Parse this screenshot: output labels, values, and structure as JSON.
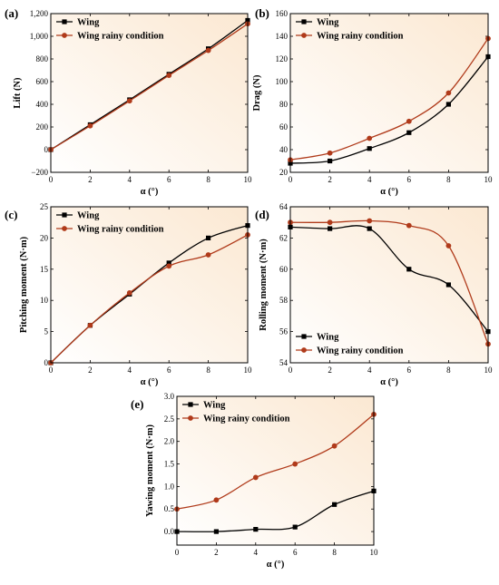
{
  "colors": {
    "wing": "#000000",
    "wing_rainy": "#b03a1a",
    "bg_gradient_start": "#ffffff",
    "bg_gradient_end": "#fbe8d2"
  },
  "chart_data": [
    {
      "id": "a",
      "panel_label": "(a)",
      "type": "line",
      "xlabel": "α (°)",
      "ylabel": "Lift (N)",
      "xlim": [
        0,
        10
      ],
      "ylim": [
        -200,
        1200
      ],
      "xticks": [
        0,
        2,
        4,
        6,
        8,
        10
      ],
      "yticks": [
        -200,
        0,
        200,
        400,
        600,
        800,
        1000,
        1200
      ],
      "ytick_labels": [
        "−200",
        "0",
        "200",
        "400",
        "600",
        "800",
        "1,000",
        "1,200"
      ],
      "legend_position": "top-left",
      "series": [
        {
          "name": "Wing",
          "marker": "square",
          "x": [
            0,
            2,
            4,
            6,
            8,
            10
          ],
          "y": [
            0,
            220,
            440,
            665,
            890,
            1140
          ]
        },
        {
          "name": "Wing rainy condition",
          "marker": "circle",
          "x": [
            0,
            2,
            4,
            6,
            8,
            10
          ],
          "y": [
            0,
            210,
            430,
            655,
            875,
            1110
          ]
        }
      ]
    },
    {
      "id": "b",
      "panel_label": "(b)",
      "type": "line",
      "xlabel": "α (°)",
      "ylabel": "Drag (N)",
      "xlim": [
        0,
        10
      ],
      "ylim": [
        20,
        160
      ],
      "xticks": [
        0,
        2,
        4,
        6,
        8,
        10
      ],
      "yticks": [
        20,
        40,
        60,
        80,
        100,
        120,
        140,
        160
      ],
      "ytick_labels": [
        "20",
        "40",
        "60",
        "80",
        "100",
        "120",
        "140",
        "160"
      ],
      "legend_position": "top-left",
      "series": [
        {
          "name": "Wing",
          "marker": "square",
          "x": [
            0,
            2,
            4,
            6,
            8,
            10
          ],
          "y": [
            28,
            30,
            41,
            55,
            80,
            122
          ]
        },
        {
          "name": "Wing rainy condition",
          "marker": "circle",
          "x": [
            0,
            2,
            4,
            6,
            8,
            10
          ],
          "y": [
            31,
            37,
            50,
            65,
            90,
            138
          ]
        }
      ]
    },
    {
      "id": "c",
      "panel_label": "(c)",
      "type": "line",
      "xlabel": "α (°)",
      "ylabel": "Pitching moment (N·m)",
      "xlim": [
        0,
        10
      ],
      "ylim": [
        0,
        25
      ],
      "xticks": [
        0,
        2,
        4,
        6,
        8,
        10
      ],
      "yticks": [
        0,
        5,
        10,
        15,
        20,
        25
      ],
      "ytick_labels": [
        "0",
        "5",
        "10",
        "15",
        "20",
        "25"
      ],
      "legend_position": "top-right",
      "series": [
        {
          "name": "Wing",
          "marker": "square",
          "x": [
            0,
            2,
            4,
            6,
            8,
            10
          ],
          "y": [
            0,
            6,
            11,
            16,
            20,
            22
          ]
        },
        {
          "name": "Wing rainy condition",
          "marker": "circle",
          "x": [
            0,
            2,
            4,
            6,
            8,
            10
          ],
          "y": [
            0,
            6,
            11.2,
            15.5,
            17.3,
            20.5
          ]
        }
      ]
    },
    {
      "id": "d",
      "panel_label": "(d)",
      "type": "line",
      "xlabel": "α (°)",
      "ylabel": "Rolling moment (N·m)",
      "xlim": [
        0,
        10
      ],
      "ylim": [
        54,
        64
      ],
      "xticks": [
        0,
        2,
        4,
        6,
        8,
        10
      ],
      "yticks": [
        54,
        56,
        58,
        60,
        62,
        64
      ],
      "ytick_labels": [
        "54",
        "56",
        "58",
        "60",
        "62",
        "64"
      ],
      "legend_position": "bottom-left",
      "series": [
        {
          "name": "Wing",
          "marker": "square",
          "x": [
            0,
            2,
            4,
            6,
            8,
            10
          ],
          "y": [
            62.7,
            62.6,
            62.6,
            60.0,
            59.0,
            56.0
          ]
        },
        {
          "name": "Wing rainy condition",
          "marker": "circle",
          "x": [
            0,
            2,
            4,
            6,
            8,
            10
          ],
          "y": [
            63.0,
            63.0,
            63.1,
            62.8,
            61.5,
            55.2
          ]
        }
      ]
    },
    {
      "id": "e",
      "panel_label": "(e)",
      "type": "line",
      "xlabel": "α (°)",
      "ylabel": "Yawing moment (N·m)",
      "xlim": [
        0,
        10
      ],
      "ylim": [
        -0.3,
        3.0
      ],
      "xticks": [
        0,
        2,
        4,
        6,
        8,
        10
      ],
      "yticks": [
        0,
        0.5,
        1.0,
        1.5,
        2.0,
        2.5,
        3.0
      ],
      "ytick_labels": [
        "0.0",
        "0.5",
        "1.0",
        "1.5",
        "2.0",
        "2.5",
        "3.0"
      ],
      "legend_position": "top-left",
      "series": [
        {
          "name": "Wing",
          "marker": "square",
          "x": [
            0,
            2,
            4,
            6,
            8,
            10
          ],
          "y": [
            0,
            0,
            0.05,
            0.1,
            0.6,
            0.9
          ]
        },
        {
          "name": "Wing rainy condition",
          "marker": "circle",
          "x": [
            0,
            2,
            4,
            6,
            8,
            10
          ],
          "y": [
            0.5,
            0.7,
            1.2,
            1.5,
            1.9,
            2.6
          ]
        }
      ]
    }
  ]
}
